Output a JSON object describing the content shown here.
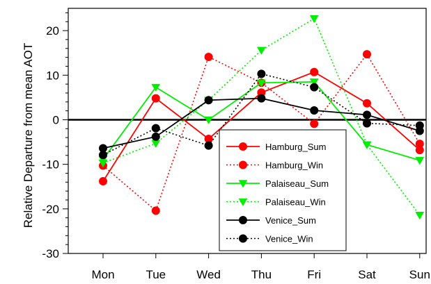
{
  "chart_data": {
    "type": "line",
    "title": "",
    "xlabel": "",
    "ylabel": "Relative Departure from mean AOT",
    "categories": [
      "Mon",
      "Tue",
      "Wed",
      "Thu",
      "Fri",
      "Sat",
      "Sun"
    ],
    "ylim": [
      -30,
      25
    ],
    "yticks": [
      -30,
      -20,
      -10,
      0,
      10,
      20
    ],
    "zero_line": true,
    "legend_position": "lower-right",
    "series": [
      {
        "name": "Hamburg_Sum",
        "color": "#ff0000",
        "dash": "solid",
        "marker": "circle",
        "values": [
          -13.8,
          4.8,
          -4.3,
          6.1,
          10.7,
          3.7,
          -6.8
        ]
      },
      {
        "name": "Hamburg_Win",
        "color": "#ff0000",
        "dash": "dotted",
        "marker": "circle",
        "values": [
          -10.3,
          -20.4,
          14.1,
          8.3,
          -0.9,
          14.7,
          -5.4
        ]
      },
      {
        "name": "Palaiseau_Sum",
        "color": "#00ee00",
        "dash": "solid",
        "marker": "triangle",
        "values": [
          -8.9,
          7.3,
          0.0,
          8.3,
          8.5,
          -5.6,
          -9.1
        ]
      },
      {
        "name": "Palaiseau_Win",
        "color": "#00ee00",
        "dash": "dotted",
        "marker": "triangle",
        "values": [
          -9.7,
          -5.3,
          4.4,
          15.6,
          22.7,
          -5.6,
          -21.4
        ]
      },
      {
        "name": "Venice_Sum",
        "color": "#000000",
        "dash": "solid",
        "marker": "circle",
        "values": [
          -6.4,
          -3.8,
          4.4,
          4.8,
          2.1,
          1.1,
          -2.5
        ]
      },
      {
        "name": "Venice_Win",
        "color": "#000000",
        "dash": "dotted",
        "marker": "circle",
        "values": [
          -7.9,
          -1.9,
          -5.8,
          10.3,
          7.3,
          -0.8,
          -1.3
        ]
      }
    ]
  }
}
